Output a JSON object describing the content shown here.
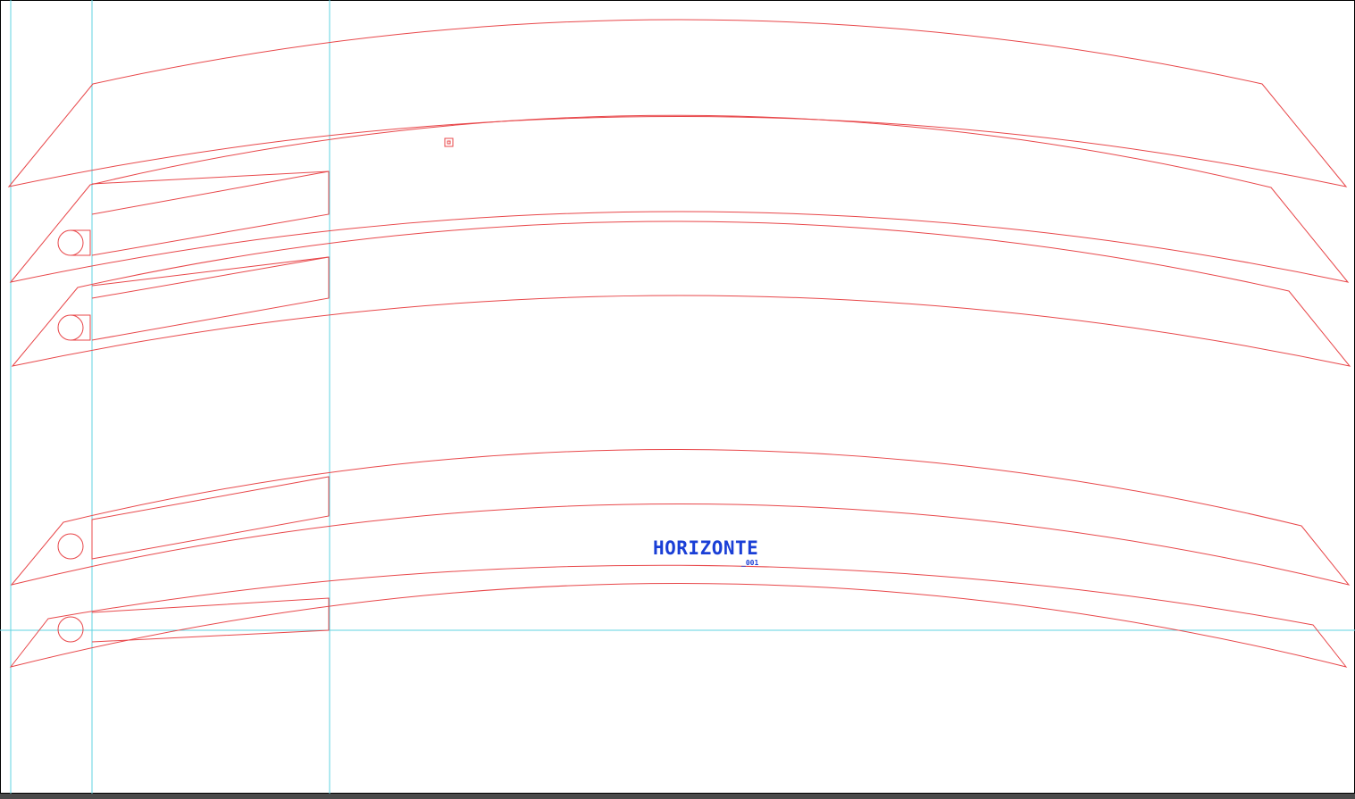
{
  "artboard": {
    "logo_title": "HORIZONTE",
    "logo_subtitle": "_001"
  },
  "colors": {
    "background": "#ffffff",
    "cut_line": "#e8474a",
    "guide_line": "#5fd3e0",
    "logo": "#1a3fd6",
    "bottom_bar": "#4a4a4a",
    "frame": "#000000"
  }
}
